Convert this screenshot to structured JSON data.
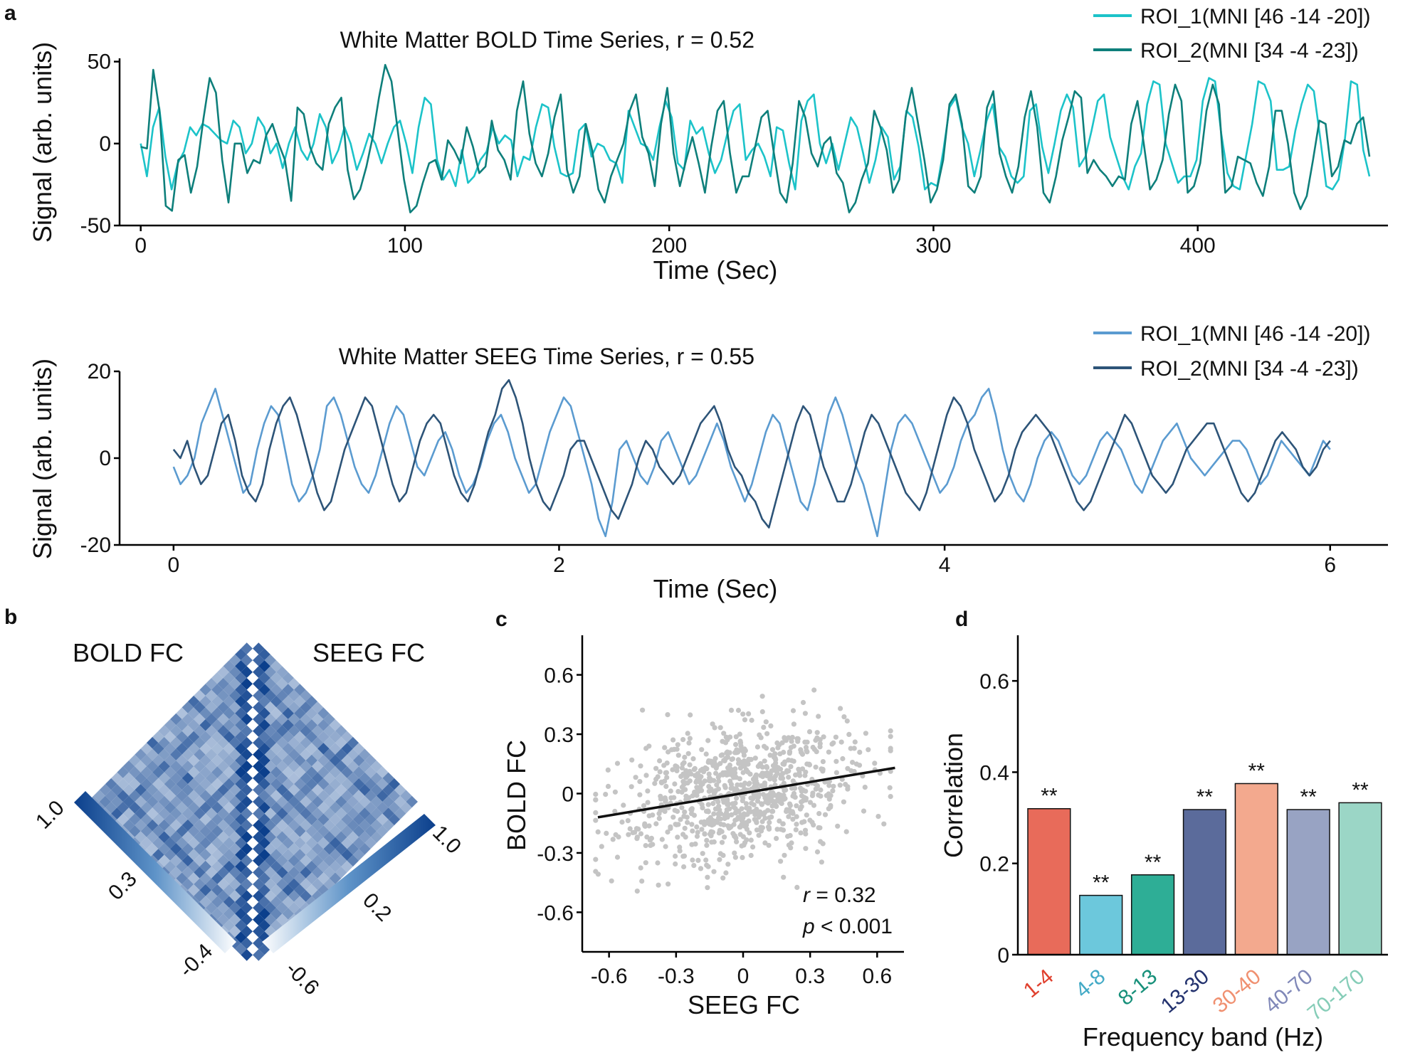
{
  "panel_labels": {
    "a": "a",
    "b": "b",
    "c": "c",
    "d": "d"
  },
  "chart_data": [
    {
      "id": "bold",
      "type": "line",
      "title": "White Matter BOLD Time Series, r = 0.52",
      "xlabel": "Time (Sec)",
      "ylabel": "Signal (arb. units)",
      "xlim": [
        -8,
        472
      ],
      "ylim": [
        -50,
        52
      ],
      "xticks": [
        0,
        100,
        200,
        300,
        400
      ],
      "xticklabels": [
        "0",
        "100",
        "200",
        "300",
        "400"
      ],
      "yticks": [
        -50,
        0,
        50
      ],
      "yticklabels": [
        "-50",
        "0",
        "50"
      ],
      "legend": [
        "ROI_1(MNI [46 -14 -20])",
        "ROI_2(MNI [34 -4 -23])"
      ],
      "colors": [
        "#1cc3c9",
        "#0e7f7b"
      ],
      "series": [
        {
          "name": "ROI_1(MNI [46 -14 -20])",
          "t_end": 465,
          "values": [
            0,
            -20,
            10,
            22,
            -8,
            -28,
            -12,
            -5,
            10,
            5,
            12,
            10,
            6,
            2,
            0,
            14,
            10,
            -6,
            0,
            16,
            10,
            -6,
            0,
            -15,
            0,
            10,
            -4,
            -10,
            0,
            18,
            10,
            -12,
            -4,
            10,
            0,
            -16,
            -6,
            6,
            0,
            -12,
            0,
            10,
            14,
            0,
            -18,
            10,
            28,
            24,
            -10,
            -22,
            -16,
            -26,
            -4,
            -24,
            -20,
            -10,
            -5,
            10,
            0,
            5,
            2,
            -20,
            -8,
            -10,
            10,
            24,
            22,
            -2,
            -18,
            -20,
            -18,
            8,
            12,
            -8,
            0,
            -2,
            -10,
            -12,
            -24,
            20,
            10,
            0,
            -2,
            -10,
            10,
            26,
            16,
            -12,
            -16,
            14,
            6,
            10,
            -6,
            -18,
            -10,
            6,
            20,
            24,
            -10,
            -4,
            0,
            -8,
            -20,
            10,
            8,
            -12,
            -28,
            14,
            26,
            30,
            0,
            -12,
            0,
            -16,
            0,
            16,
            10,
            -6,
            -24,
            -10,
            10,
            4,
            -22,
            -14,
            20,
            16,
            -2,
            -28,
            -24,
            -26,
            -4,
            22,
            28,
            10,
            0,
            -20,
            -4,
            14,
            24,
            -2,
            -8,
            -20,
            -24,
            -20,
            20,
            24,
            -2,
            -18,
            0,
            20,
            30,
            22,
            -14,
            -8,
            8,
            26,
            30,
            4,
            -8,
            -20,
            -28,
            -14,
            -6,
            24,
            38,
            36,
            0,
            -12,
            -24,
            -20,
            -20,
            -10,
            26,
            40,
            38,
            6,
            -18,
            -26,
            -28,
            -8,
            12,
            38,
            36,
            26,
            -16,
            -16,
            -14,
            8,
            24,
            36,
            32,
            4,
            -26,
            -28,
            -22,
            2,
            38,
            36,
            -4,
            -20
          ]
        },
        {
          "name": "ROI_2(MNI [34 -4 -23])",
          "t_end": 465,
          "values": [
            -2,
            -3,
            45,
            20,
            -38,
            -41,
            -10,
            -7,
            -30,
            -14,
            15,
            40,
            31,
            -10,
            -36,
            0,
            0,
            -18,
            -10,
            -12,
            5,
            12,
            0,
            -10,
            -35,
            22,
            18,
            -2,
            -12,
            -16,
            12,
            22,
            28,
            -16,
            -34,
            -28,
            -14,
            4,
            28,
            48,
            38,
            8,
            -22,
            -42,
            -38,
            -24,
            -12,
            -10,
            -22,
            2,
            -4,
            -12,
            10,
            -2,
            -18,
            -14,
            14,
            -4,
            -10,
            -22,
            20,
            38,
            6,
            -12,
            -20,
            -6,
            16,
            30,
            -16,
            -30,
            -20,
            12,
            -4,
            -28,
            -36,
            -20,
            -10,
            0,
            20,
            30,
            4,
            -6,
            -26,
            12,
            34,
            -6,
            -26,
            -10,
            4,
            -12,
            -30,
            -2,
            20,
            26,
            -6,
            -30,
            -20,
            -20,
            -2,
            16,
            20,
            -6,
            -30,
            -36,
            -12,
            26,
            16,
            -6,
            -14,
            0,
            4,
            -18,
            -24,
            -42,
            -36,
            -22,
            -12,
            20,
            10,
            -4,
            -30,
            -22,
            16,
            34,
            12,
            -10,
            -36,
            -28,
            -10,
            24,
            30,
            12,
            -26,
            -30,
            -20,
            22,
            32,
            -6,
            -20,
            -30,
            -14,
            16,
            32,
            10,
            -30,
            -36,
            -20,
            2,
            16,
            32,
            28,
            -18,
            -10,
            -16,
            -20,
            -26,
            -20,
            -22,
            12,
            26,
            0,
            -28,
            -22,
            -10,
            18,
            36,
            26,
            -30,
            -26,
            -12,
            20,
            36,
            24,
            -30,
            -26,
            -8,
            -10,
            -12,
            -24,
            -32,
            -14,
            20,
            20,
            0,
            -30,
            -40,
            -32,
            -10,
            14,
            12,
            -20,
            -14,
            2,
            0,
            12,
            16,
            -8
          ]
        }
      ]
    },
    {
      "id": "seeg",
      "type": "line",
      "title": "White Matter SEEG Time Series, r = 0.55",
      "xlabel": "Time (Sec)",
      "ylabel": "Signal (arb. units)",
      "xlim": [
        -0.28,
        6.3
      ],
      "ylim": [
        -20,
        20
      ],
      "xticks": [
        0,
        2,
        4,
        6
      ],
      "xticklabels": [
        "0",
        "2",
        "4",
        "6"
      ],
      "yticks": [
        -20,
        0,
        20
      ],
      "yticklabels": [
        "-20",
        "0",
        "20"
      ],
      "legend": [
        "ROI_1(MNI [46 -14 -20])",
        "ROI_2(MNI [34 -4 -23])"
      ],
      "colors": [
        "#5b9bd0",
        "#2d5478"
      ],
      "series": [
        {
          "name": "ROI_1(MNI [46 -14 -20])",
          "t_end": 6,
          "values": [
            -2,
            -6,
            -4,
            0,
            8,
            12,
            16,
            10,
            4,
            -2,
            -8,
            -6,
            2,
            8,
            12,
            10,
            2,
            -6,
            -10,
            -8,
            -4,
            2,
            12,
            14,
            10,
            4,
            -2,
            -6,
            -8,
            -4,
            2,
            8,
            12,
            10,
            4,
            -2,
            -4,
            0,
            4,
            6,
            2,
            -4,
            -8,
            -6,
            -2,
            4,
            8,
            10,
            6,
            0,
            -4,
            -8,
            -6,
            0,
            6,
            10,
            14,
            12,
            6,
            0,
            -6,
            -14,
            -18,
            -10,
            2,
            4,
            0,
            -4,
            -6,
            -2,
            4,
            6,
            2,
            -2,
            -6,
            -4,
            0,
            4,
            8,
            4,
            -2,
            -6,
            -10,
            -6,
            0,
            6,
            10,
            8,
            2,
            -4,
            -10,
            -12,
            -6,
            2,
            10,
            14,
            10,
            4,
            -2,
            -6,
            -12,
            -18,
            -8,
            2,
            8,
            10,
            8,
            4,
            0,
            -4,
            -8,
            -6,
            -2,
            4,
            8,
            10,
            14,
            16,
            10,
            2,
            -4,
            -8,
            -10,
            -6,
            0,
            4,
            6,
            4,
            0,
            -4,
            -6,
            -4,
            0,
            4,
            6,
            4,
            2,
            -2,
            -6,
            -8,
            -4,
            0,
            4,
            6,
            8,
            4,
            0,
            -2,
            -4,
            -2,
            0,
            2,
            4,
            4,
            2,
            -2,
            -6,
            -4,
            0,
            4,
            2,
            0,
            -2,
            -4,
            0,
            4,
            2
          ]
        },
        {
          "name": "ROI_2(MNI [34 -4 -23])",
          "t_end": 6,
          "values": [
            2,
            0,
            4,
            -2,
            -6,
            -4,
            2,
            8,
            10,
            4,
            -4,
            -8,
            -10,
            -6,
            2,
            8,
            12,
            14,
            10,
            4,
            -2,
            -8,
            -12,
            -10,
            -4,
            2,
            6,
            10,
            14,
            12,
            6,
            0,
            -6,
            -10,
            -8,
            -2,
            4,
            8,
            10,
            8,
            2,
            -4,
            -8,
            -10,
            -6,
            0,
            6,
            10,
            16,
            18,
            14,
            8,
            0,
            -6,
            -10,
            -12,
            -8,
            -4,
            2,
            4,
            4,
            0,
            -4,
            -8,
            -12,
            -14,
            -10,
            -6,
            0,
            4,
            2,
            -2,
            -4,
            -6,
            -4,
            0,
            4,
            8,
            10,
            12,
            8,
            2,
            -2,
            -4,
            -8,
            -10,
            -14,
            -16,
            -10,
            -4,
            2,
            8,
            12,
            10,
            4,
            -2,
            -6,
            -10,
            -10,
            -6,
            0,
            6,
            10,
            8,
            4,
            0,
            -4,
            -8,
            -10,
            -12,
            -8,
            -2,
            4,
            10,
            14,
            12,
            8,
            2,
            -2,
            -6,
            -10,
            -8,
            -4,
            2,
            6,
            8,
            10,
            8,
            6,
            2,
            -2,
            -6,
            -10,
            -12,
            -10,
            -6,
            -2,
            2,
            6,
            10,
            8,
            4,
            0,
            -4,
            -6,
            -8,
            -6,
            -2,
            2,
            4,
            6,
            8,
            8,
            4,
            0,
            -4,
            -8,
            -10,
            -8,
            -4,
            0,
            4,
            6,
            4,
            2,
            -2,
            -4,
            -2,
            2,
            4
          ]
        }
      ]
    },
    {
      "id": "matrix",
      "type": "heatmap",
      "labels": {
        "left": "BOLD FC",
        "right": "SEEG FC"
      },
      "colorbar_left": {
        "ticks": [
          "1.0",
          "0.3",
          "-0.4"
        ],
        "range": [
          -0.4,
          1.0
        ]
      },
      "colorbar_right": {
        "ticks": [
          "1.0",
          "0.2",
          "-0.6"
        ],
        "range": [
          -0.6,
          1.0
        ]
      },
      "n_nodes": 28,
      "colors": {
        "low": "#eef4fb",
        "high": "#0b3f8c"
      }
    },
    {
      "id": "scatter",
      "type": "scatter",
      "xlabel": "SEEG FC",
      "ylabel": "BOLD FC",
      "xlim": [
        -0.72,
        0.72
      ],
      "ylim": [
        -0.8,
        0.8
      ],
      "xticks": [
        -0.6,
        -0.3,
        0,
        0.3,
        0.6
      ],
      "xticklabels": [
        "-0.6",
        "-0.3",
        "0",
        "0.3",
        "0.6"
      ],
      "yticks": [
        -0.6,
        -0.3,
        0,
        0.3,
        0.6
      ],
      "yticklabels": [
        "-0.6",
        "-0.3",
        "0",
        "0.3",
        "0.6"
      ],
      "fit_line": {
        "x": [
          -0.65,
          0.68
        ],
        "y": [
          -0.12,
          0.13
        ]
      },
      "annotation": {
        "r_symbol": "r",
        "r_text": " = 0.32",
        "p_symbol": "p",
        "p_text": " < 0.001"
      },
      "point_color": "#c4c4c4",
      "n_points": 900,
      "slope": 0.19,
      "intercept": 0.0,
      "spread": 0.17
    },
    {
      "id": "bars",
      "type": "bar",
      "xlabel": "Frequency band (Hz)",
      "ylabel": "Correlation",
      "ylim": [
        0,
        0.7
      ],
      "yticks": [
        0,
        0.2,
        0.4,
        0.6
      ],
      "yticklabels": [
        "0",
        "0.2",
        "0.4",
        "0.6"
      ],
      "categories": [
        "1-4",
        "4-8",
        "8-13",
        "13-30",
        "30-40",
        "40-70",
        "70-170"
      ],
      "values": [
        0.32,
        0.13,
        0.175,
        0.318,
        0.375,
        0.318,
        0.333
      ],
      "significance": [
        "**",
        "**",
        "**",
        "**",
        "**",
        "**",
        "**"
      ],
      "colors": [
        "#e86b5a",
        "#6cc8dc",
        "#2eae96",
        "#5b6b9b",
        "#f3a98e",
        "#98a3c3",
        "#9bd6c6"
      ],
      "label_colors": [
        "#e0402e",
        "#43aac6",
        "#17907a",
        "#23326e",
        "#f09070",
        "#8088b8",
        "#86cdb8"
      ]
    }
  ]
}
